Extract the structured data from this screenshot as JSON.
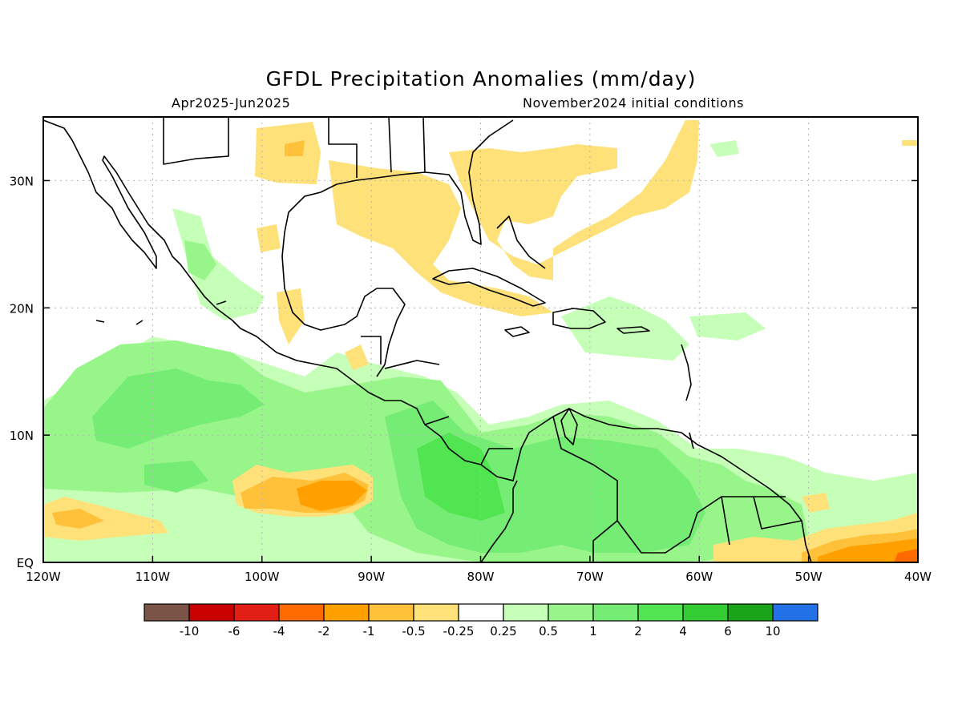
{
  "header": {
    "title": "GFDL Precipitation Anomalies (mm/day)",
    "period": "Apr2025-Jun2025",
    "init": "November2024 initial conditions"
  },
  "map": {
    "lon_labels": [
      "120W",
      "110W",
      "100W",
      "90W",
      "80W",
      "70W",
      "60W",
      "50W",
      "40W"
    ],
    "lat_labels": [
      "EQ",
      "10N",
      "20N",
      "30N"
    ],
    "lon_range": [
      -120,
      -40
    ],
    "lat_range": [
      0,
      35
    ]
  },
  "colorbar": {
    "colors": [
      "#7a5447",
      "#c80000",
      "#e01e14",
      "#ff6a00",
      "#ffa000",
      "#ffc13a",
      "#ffe17a",
      "#ffffff",
      "#c6ffb7",
      "#97f58a",
      "#75ec74",
      "#52e552",
      "#33cc33",
      "#1aa41a",
      "#2371e6"
    ],
    "labels": [
      "-10",
      "-6",
      "-4",
      "-2",
      "-1",
      "-0.5",
      "-0.25",
      "0.25",
      "0.5",
      "1",
      "2",
      "4",
      "6",
      "10"
    ]
  }
}
